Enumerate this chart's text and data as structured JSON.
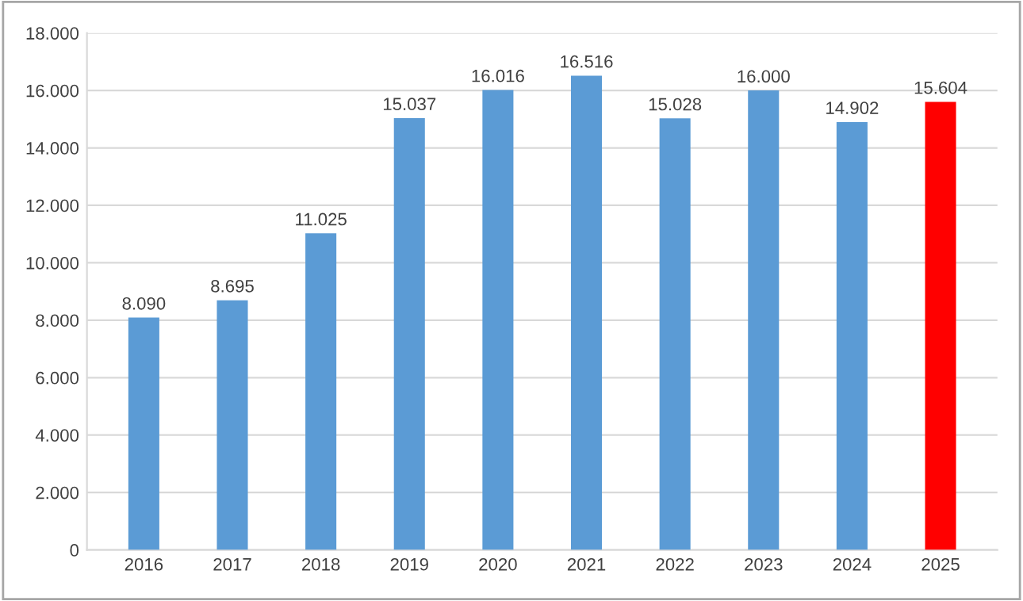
{
  "chart_data": {
    "type": "bar",
    "categories": [
      "2016",
      "2017",
      "2018",
      "2019",
      "2020",
      "2021",
      "2022",
      "2023",
      "2024",
      "2025"
    ],
    "values": [
      8090,
      8695,
      11025,
      15037,
      16016,
      16516,
      15028,
      16000,
      14902,
      15604
    ],
    "colors": [
      "#5b9bd5",
      "#5b9bd5",
      "#5b9bd5",
      "#5b9bd5",
      "#5b9bd5",
      "#5b9bd5",
      "#5b9bd5",
      "#5b9bd5",
      "#5b9bd5",
      "#ff0000"
    ],
    "value_labels": [
      "8.090",
      "8.695",
      "11.025",
      "15.037",
      "16.016",
      "16.516",
      "15.028",
      "16.000",
      "14.902",
      "15.604"
    ],
    "ylim": [
      0,
      18000
    ],
    "yticks": [
      {
        "value": 0,
        "label": "0"
      },
      {
        "value": 2000,
        "label": "2.000"
      },
      {
        "value": 4000,
        "label": "4.000"
      },
      {
        "value": 6000,
        "label": "6.000"
      },
      {
        "value": 8000,
        "label": "8.000"
      },
      {
        "value": 10000,
        "label": "10.000"
      },
      {
        "value": 12000,
        "label": "12.000"
      },
      {
        "value": 14000,
        "label": "14.000"
      },
      {
        "value": 16000,
        "label": "16.000"
      },
      {
        "value": 18000,
        "label": "18.000"
      }
    ],
    "grid": "y",
    "legend": false
  }
}
